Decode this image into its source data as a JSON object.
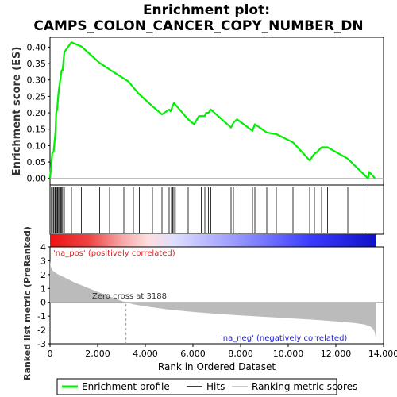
{
  "title_line1": "Enrichment plot:",
  "title_line2": "CAMPS_COLON_CANCER_COPY_NUMBER_DN",
  "ylabel_top": "Enrichment score (ES)",
  "ylabel_bottom": "Ranked list metric (PreRanked)",
  "xlabel": "Rank in Ordered Dataset",
  "label_pos": "'na_pos' (positively correlated)",
  "label_neg": "'na_neg' (negatively correlated)",
  "zero_cross": "Zero cross at 3188",
  "legend": {
    "profile": "Enrichment profile",
    "hits": "Hits",
    "ranking": "Ranking metric scores"
  },
  "colors": {
    "profile": "#00ee00",
    "metric_fill": "#bbbbbb",
    "pos_label": "#dd2222",
    "neg_label": "#2222cc"
  },
  "chart_data": {
    "type": "line",
    "n_genes": 13700,
    "xlim": [
      0,
      14000
    ],
    "x_ticks": [
      0,
      2000,
      4000,
      6000,
      8000,
      10000,
      12000,
      14000
    ],
    "x_tick_labels": [
      "0",
      "2,000",
      "4,000",
      "6,000",
      "8,000",
      "10,000",
      "12,000",
      "14,000"
    ],
    "es": {
      "ylim": [
        -0.02,
        0.43
      ],
      "y_ticks": [
        0.0,
        0.05,
        0.1,
        0.15,
        0.2,
        0.25,
        0.3,
        0.35,
        0.4
      ],
      "y_tick_labels": [
        "0.00",
        "0.05",
        "0.10",
        "0.15",
        "0.20",
        "0.25",
        "0.30",
        "0.35",
        "0.40"
      ],
      "x": [
        0,
        60,
        100,
        150,
        200,
        230,
        260,
        300,
        330,
        370,
        410,
        450,
        490,
        530,
        600,
        900,
        1320,
        2080,
        2500,
        3300,
        3700,
        4300,
        4700,
        5000,
        5060,
        5200,
        5800,
        6050,
        6250,
        6350,
        6500,
        6550,
        6650,
        6750,
        7600,
        7700,
        7850,
        8500,
        8600,
        9100,
        9500,
        10200,
        10900,
        11100,
        11200,
        11400,
        11650,
        12500,
        13350,
        13400,
        13650
      ],
      "y": [
        0.0,
        0.05,
        0.08,
        0.08,
        0.12,
        0.14,
        0.2,
        0.21,
        0.24,
        0.27,
        0.29,
        0.31,
        0.33,
        0.33,
        0.385,
        0.415,
        0.402,
        0.352,
        0.332,
        0.295,
        0.26,
        0.22,
        0.195,
        0.21,
        0.205,
        0.23,
        0.18,
        0.165,
        0.19,
        0.19,
        0.19,
        0.2,
        0.2,
        0.21,
        0.155,
        0.17,
        0.18,
        0.145,
        0.165,
        0.14,
        0.135,
        0.11,
        0.055,
        0.075,
        0.08,
        0.095,
        0.095,
        0.06,
        0.0,
        0.02,
        0.0
      ]
    },
    "hits": [
      60,
      100,
      150,
      200,
      230,
      260,
      300,
      330,
      370,
      410,
      450,
      490,
      530,
      600,
      900,
      1320,
      2080,
      2500,
      3100,
      3150,
      3500,
      3650,
      3750,
      4300,
      4700,
      5000,
      5100,
      5150,
      5200,
      5260,
      5800,
      6250,
      6350,
      6500,
      6650,
      6750,
      7600,
      7700,
      7850,
      8500,
      8600,
      9100,
      9500,
      10200,
      10900,
      11100,
      11250,
      11400,
      11650,
      12500,
      13350
    ],
    "metric": {
      "ylim": [
        -3,
        4
      ],
      "y_ticks": [
        -3,
        -2,
        -1,
        0,
        1,
        2,
        3,
        4
      ],
      "y_tick_labels": [
        "-3",
        "-2",
        "-1",
        "0",
        "1",
        "2",
        "3",
        "4"
      ],
      "x": [
        0,
        30,
        100,
        300,
        600,
        1000,
        1500,
        2000,
        2500,
        3000,
        3188,
        3500,
        4000,
        5000,
        6000,
        7000,
        8000,
        9000,
        10000,
        11000,
        12000,
        12800,
        13200,
        13450,
        13550,
        13620,
        13680,
        13700
      ],
      "y": [
        3.0,
        2.6,
        2.3,
        2.05,
        1.8,
        1.45,
        1.1,
        0.75,
        0.42,
        0.1,
        0.0,
        -0.15,
        -0.3,
        -0.53,
        -0.7,
        -0.83,
        -0.95,
        -1.05,
        -1.15,
        -1.25,
        -1.38,
        -1.5,
        -1.6,
        -1.75,
        -1.9,
        -2.1,
        -2.6,
        -2.9
      ]
    },
    "zero_cross": 3188
  }
}
